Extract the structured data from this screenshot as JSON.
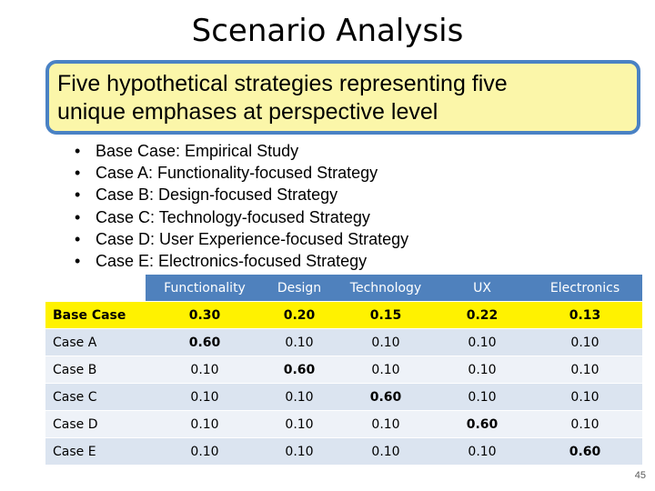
{
  "title": "Scenario Analysis",
  "callout": {
    "line1": "Five hypothetical strategies representing five",
    "line2": "unique emphases at perspective level"
  },
  "bullets": [
    "Base Case: Empirical Study",
    "Case A: Functionality-focused Strategy",
    "Case B: Design-focused Strategy",
    "Case C: Technology-focused Strategy",
    "Case D: User Experience-focused Strategy",
    "Case E: Electronics-focused Strategy"
  ],
  "table": {
    "columns": [
      "Functionality",
      "Design",
      "Technology",
      "UX",
      "Electronics"
    ],
    "rows": [
      {
        "label": "Base Case",
        "values": [
          "0.30",
          "0.20",
          "0.15",
          "0.22",
          "0.13"
        ]
      },
      {
        "label": "Case A",
        "values": [
          "0.60",
          "0.10",
          "0.10",
          "0.10",
          "0.10"
        ]
      },
      {
        "label": "Case B",
        "values": [
          "0.10",
          "0.60",
          "0.10",
          "0.10",
          "0.10"
        ]
      },
      {
        "label": "Case C",
        "values": [
          "0.10",
          "0.10",
          "0.60",
          "0.10",
          "0.10"
        ]
      },
      {
        "label": "Case D",
        "values": [
          "0.10",
          "0.10",
          "0.10",
          "0.60",
          "0.10"
        ]
      },
      {
        "label": "Case E",
        "values": [
          "0.10",
          "0.10",
          "0.10",
          "0.10",
          "0.60"
        ]
      }
    ]
  },
  "page_number": "45",
  "colors": {
    "header": "#4f81bd",
    "highlight_row": "#fff200",
    "callout_fill": "#fbf6a9",
    "callout_border": "#4a82c4"
  }
}
